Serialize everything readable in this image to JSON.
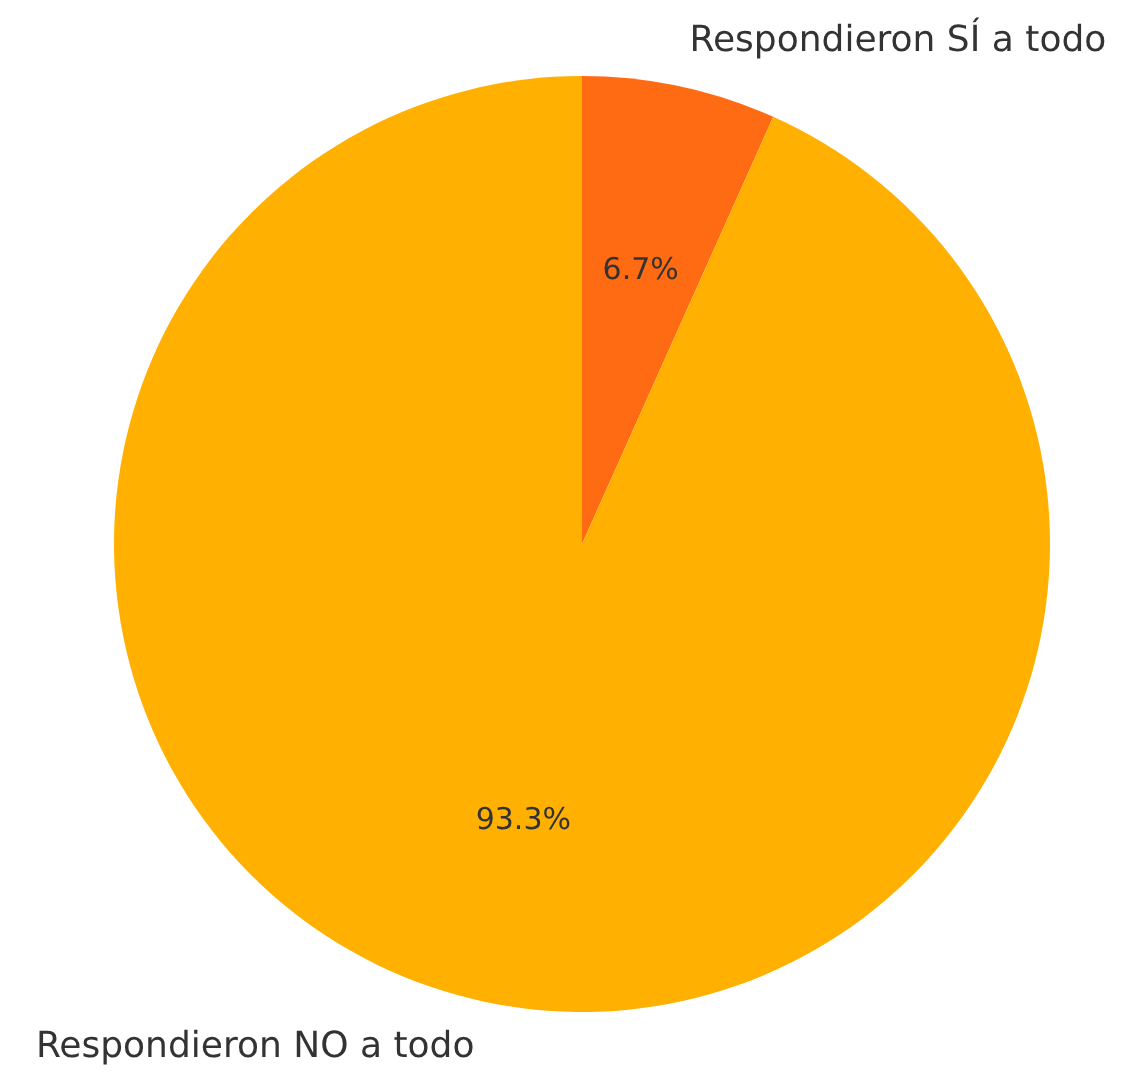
{
  "chart_data": {
    "type": "pie",
    "categories": [
      "Respondieron SÍ a todo",
      "Respondieron NO a todo"
    ],
    "values": [
      6.7,
      93.3
    ],
    "colors": [
      "#ff6b12",
      "#ffb000"
    ],
    "value_labels": [
      "6.7%",
      "93.3%"
    ]
  }
}
